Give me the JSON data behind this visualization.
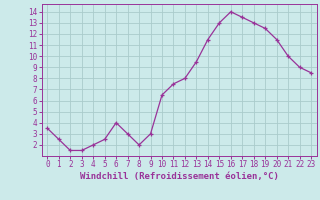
{
  "x": [
    0,
    1,
    2,
    3,
    4,
    5,
    6,
    7,
    8,
    9,
    10,
    11,
    12,
    13,
    14,
    15,
    16,
    17,
    18,
    19,
    20,
    21,
    22,
    23
  ],
  "y": [
    3.5,
    2.5,
    1.5,
    1.5,
    2.0,
    2.5,
    4.0,
    3.0,
    2.0,
    3.0,
    6.5,
    7.5,
    8.0,
    9.5,
    11.5,
    13.0,
    14.0,
    13.5,
    13.0,
    12.5,
    11.5,
    10.0,
    9.0,
    8.5
  ],
  "line_color": "#993399",
  "marker": "+",
  "bg_color": "#cceaea",
  "grid_color": "#aacccc",
  "axis_color": "#993399",
  "xlabel": "Windchill (Refroidissement éolien,°C)",
  "xlim": [
    -0.5,
    23.5
  ],
  "ylim": [
    1.0,
    14.7
  ],
  "yticks": [
    2,
    3,
    4,
    5,
    6,
    7,
    8,
    9,
    10,
    11,
    12,
    13,
    14
  ],
  "xticks": [
    0,
    1,
    2,
    3,
    4,
    5,
    6,
    7,
    8,
    9,
    10,
    11,
    12,
    13,
    14,
    15,
    16,
    17,
    18,
    19,
    20,
    21,
    22,
    23
  ],
  "tick_fontsize": 5.5,
  "xlabel_fontsize": 6.5
}
